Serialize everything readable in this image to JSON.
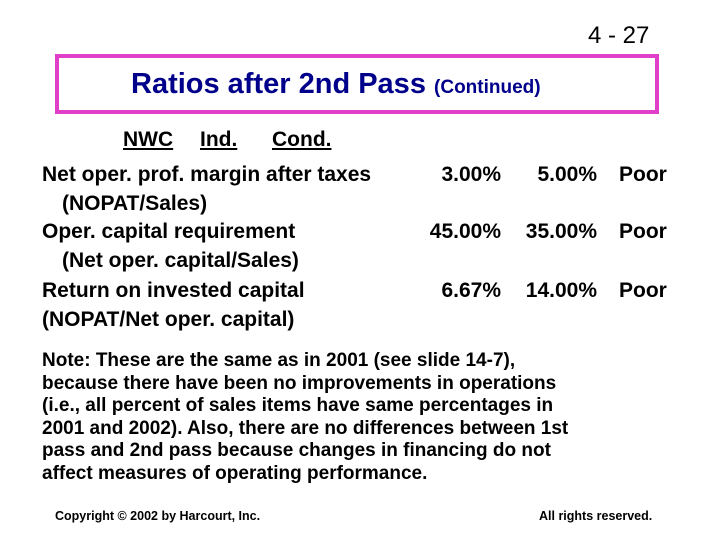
{
  "slide_number": "4 - 27",
  "title": {
    "main": "Ratios after 2nd Pass",
    "sub": "(Continued)",
    "border_color": "#e040c8",
    "text_color": "#00008b"
  },
  "table": {
    "headers": [
      "NWC",
      "Ind.",
      "Cond."
    ],
    "rows": [
      {
        "label": "Net oper. prof. margin after taxes",
        "sublabel": "(NOPAT/Sales)",
        "values": [
          "3.00%",
          "5.00%",
          "Poor"
        ]
      },
      {
        "label": "Oper. capital requirement",
        "sublabel": "(Net oper. capital/Sales)",
        "values": [
          "45.00%",
          "35.00%",
          "Poor"
        ]
      },
      {
        "label": "Return on invested capital",
        "sublabel": "(NOPAT/Net oper. capital)",
        "values": [
          "6.67%",
          "14.00%",
          "Poor"
        ]
      }
    ]
  },
  "note_lines": [
    "Note:  These are the same as in 2001 (see slide 14-7),",
    "because there have been no improvements in operations",
    "(i.e., all percent of sales items have same percentages in",
    "2001 and 2002).  Also, there are no differences between 1st",
    "pass and 2nd pass because changes in financing do not",
    "affect measures of operating performance."
  ],
  "footer": {
    "copyright": "Copyright © 2002 by Harcourt, Inc.",
    "rights": "All rights reserved."
  }
}
